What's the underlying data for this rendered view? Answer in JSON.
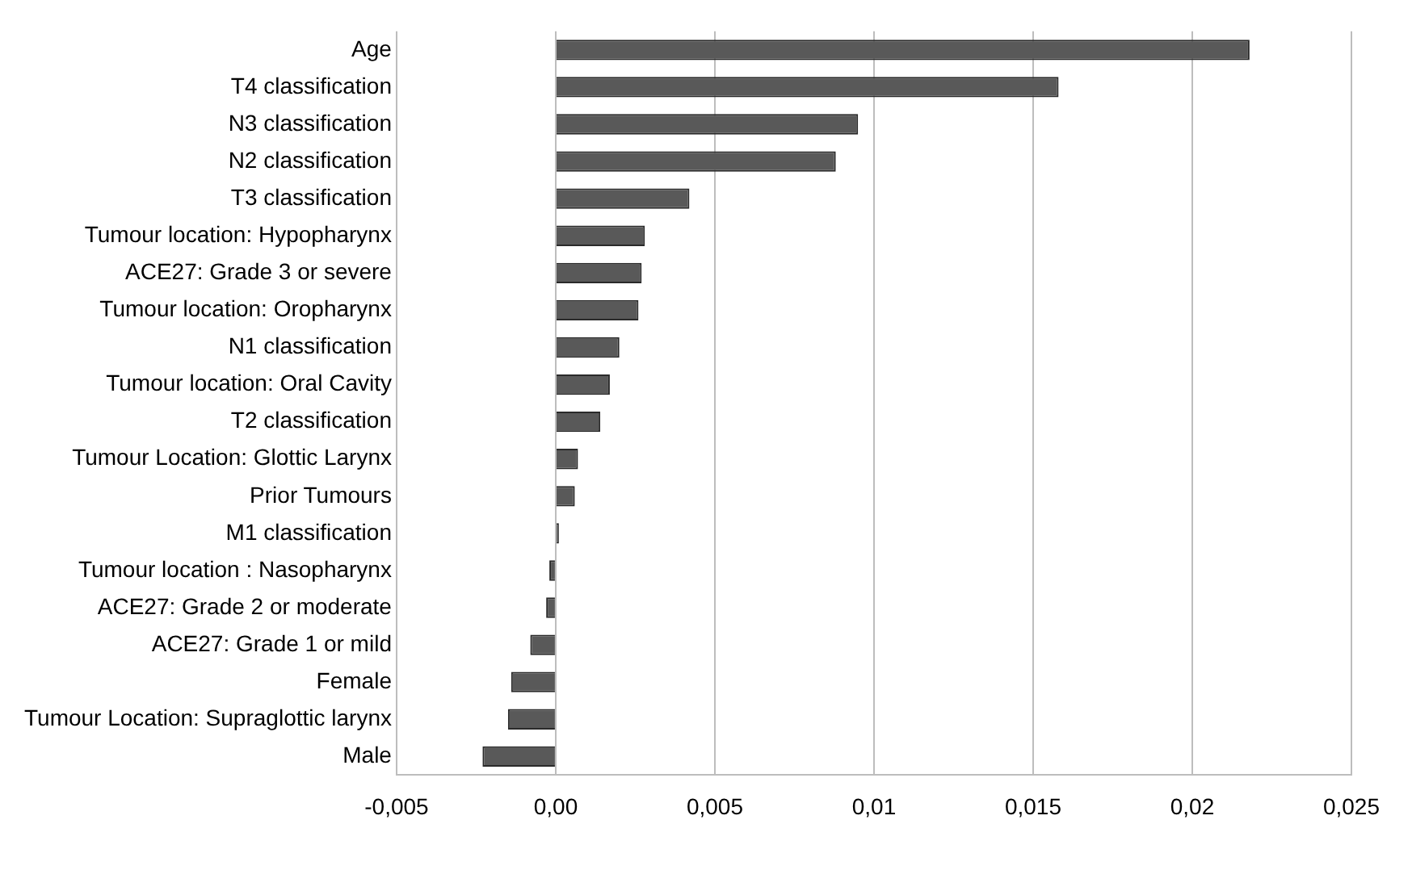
{
  "chart_data": {
    "type": "bar",
    "orientation": "horizontal",
    "categories": [
      "Age",
      "T4 classification",
      "N3 classification",
      "N2 classification",
      "T3 classification",
      "Tumour location: Hypopharynx",
      "ACE27: Grade 3 or severe",
      "Tumour location: Oropharynx",
      "N1 classification",
      "Tumour location: Oral Cavity",
      "T2 classification",
      "Tumour Location: Glottic Larynx",
      "Prior Tumours",
      "M1 classification",
      "Tumour location : Nasopharynx",
      "ACE27: Grade 2 or moderate",
      "ACE27: Grade 1 or mild",
      "Female",
      "Tumour Location: Supraglottic larynx",
      "Male"
    ],
    "values": [
      0.0218,
      0.0158,
      0.0095,
      0.0088,
      0.0042,
      0.0028,
      0.0027,
      0.0026,
      0.002,
      0.0017,
      0.0014,
      0.0007,
      0.0006,
      0.0001,
      -0.0002,
      -0.0003,
      -0.0008,
      -0.0014,
      -0.0015,
      -0.0023
    ],
    "color": "#595959",
    "xlim": [
      -0.005,
      0.025
    ],
    "xticks": [
      {
        "value": -0.005,
        "label": "-0,005"
      },
      {
        "value": 0,
        "label": "0,00"
      },
      {
        "value": 0.005,
        "label": "0,005"
      },
      {
        "value": 0.01,
        "label": "0,01"
      },
      {
        "value": 0.015,
        "label": "0,015"
      },
      {
        "value": 0.02,
        "label": "0,02"
      },
      {
        "value": 0.025,
        "label": "0,025"
      }
    ],
    "grid": "x",
    "legend": false
  }
}
